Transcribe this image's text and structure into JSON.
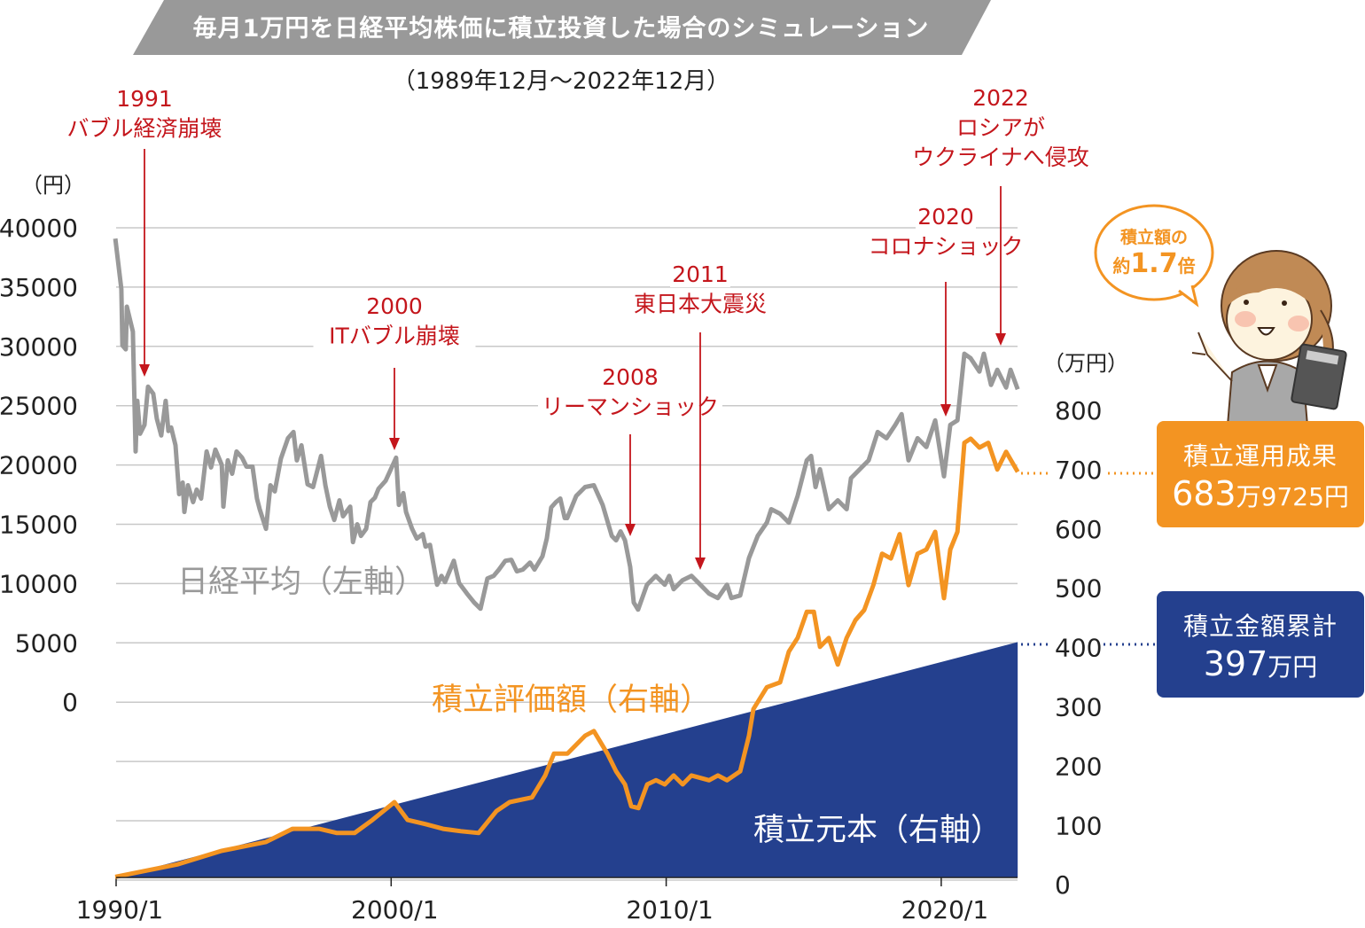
{
  "title": "毎月1万円を日経平均株価に積立投資した場合のシミュレーション",
  "subtitle": "（1989年12月〜2022年12月）",
  "colors": {
    "nikkei": "#999999",
    "valuation": "#f39422",
    "principal": "#24408e",
    "annotation": "#c4161c",
    "banner": "#999999"
  },
  "chart_data": {
    "type": "line",
    "left_axis": {
      "unit": "（円）",
      "range": [
        0,
        40000
      ],
      "ticks": [
        "40000",
        "35000",
        "30000",
        "25000",
        "20000",
        "15000",
        "10000",
        "5000",
        "0"
      ]
    },
    "right_axis": {
      "unit": "（万円）",
      "range": [
        0,
        800
      ],
      "ticks": [
        "800",
        "700",
        "600",
        "500",
        "400",
        "300",
        "200",
        "100",
        "0"
      ]
    },
    "x_axis": {
      "ticks": [
        "1990/1",
        "2000/1",
        "2010/1",
        "2020/1"
      ],
      "range": [
        "1989/12",
        "2022/12"
      ]
    },
    "grid": true,
    "series": [
      {
        "name": "日経平均（左軸）",
        "axis": "left",
        "type": "line",
        "x": [
          1989.97,
          1990.19,
          1990.23,
          1990.35,
          1990.39,
          1990.61,
          1990.71,
          1990.77,
          1990.87,
          1991.03,
          1991.16,
          1991.35,
          1991.48,
          1991.64,
          1991.8,
          1991.9,
          1992.0,
          1992.16,
          1992.29,
          1992.42,
          1992.48,
          1992.61,
          1992.8,
          1992.93,
          1993.09,
          1993.29,
          1993.45,
          1993.61,
          1993.84,
          1993.9,
          1994.06,
          1994.22,
          1994.38,
          1994.58,
          1994.74,
          1994.96,
          1995.12,
          1995.22,
          1995.45,
          1995.61,
          1995.77,
          1995.99,
          1996.25,
          1996.45,
          1996.57,
          1996.74,
          1996.96,
          1997.16,
          1997.45,
          1997.61,
          1997.77,
          1997.93,
          1998.12,
          1998.25,
          1998.51,
          1998.61,
          1998.77,
          1998.9,
          1999.09,
          1999.25,
          1999.41,
          1999.54,
          1999.8,
          2000.18,
          2000.28,
          2000.44,
          2000.54,
          2000.76,
          2000.93,
          2001.15,
          2001.25,
          2001.41,
          2001.67,
          2001.83,
          2001.96,
          2002.28,
          2002.47,
          2002.76,
          2003.02,
          2003.25,
          2003.5,
          2003.73,
          2003.92,
          2004.15,
          2004.37,
          2004.57,
          2004.79,
          2005.05,
          2005.21,
          2005.5,
          2005.66,
          2005.82,
          2005.99,
          2006.15,
          2006.31,
          2006.4,
          2006.73,
          2007.05,
          2007.37,
          2007.69,
          2008.02,
          2008.18,
          2008.34,
          2008.5,
          2008.69,
          2008.82,
          2008.98,
          2009.3,
          2009.62,
          2009.95,
          2010.11,
          2010.27,
          2010.59,
          2010.92,
          2011.24,
          2011.56,
          2011.88,
          2012.21,
          2012.37,
          2012.69,
          2013.01,
          2013.33,
          2013.66,
          2013.82,
          2014.14,
          2014.46,
          2014.78,
          2015.11,
          2015.27,
          2015.43,
          2015.59,
          2015.91,
          2016.24,
          2016.56,
          2016.72,
          2017.04,
          2017.36,
          2017.69,
          2018.01,
          2018.33,
          2018.56,
          2018.81,
          2019.14,
          2019.46,
          2019.78,
          2020.1,
          2020.33,
          2020.59,
          2020.84,
          2021.07,
          2021.39,
          2021.55,
          2021.81,
          2022.04,
          2022.36,
          2022.52,
          2022.78
        ],
        "values": [
          39000,
          34750,
          30000,
          29660,
          33260,
          31160,
          21050,
          25320,
          22540,
          23290,
          26510,
          25920,
          23820,
          22400,
          25320,
          22770,
          23070,
          21570,
          17450,
          18430,
          15950,
          18200,
          16780,
          17830,
          17080,
          21050,
          19700,
          21200,
          19920,
          16400,
          20300,
          19170,
          21050,
          20520,
          19770,
          19770,
          17080,
          16180,
          14530,
          18200,
          17680,
          20450,
          22170,
          22690,
          20300,
          21570,
          18280,
          18050,
          20670,
          18200,
          16400,
          15280,
          16930,
          15580,
          16400,
          13410,
          14910,
          13930,
          14530,
          16780,
          17150,
          17900,
          18580,
          20520,
          16550,
          17530,
          15950,
          14530,
          13710,
          14080,
          13030,
          13180,
          9810,
          10560,
          10040,
          11830,
          9960,
          9060,
          8310,
          7790,
          10340,
          10560,
          11090,
          11830,
          11910,
          10940,
          11090,
          11680,
          11090,
          12210,
          13710,
          16330,
          16780,
          17080,
          15430,
          15430,
          17300,
          18050,
          18200,
          16550,
          13930,
          13560,
          14310,
          13560,
          11310,
          8310,
          7710,
          9810,
          10560,
          9810,
          10560,
          9440,
          10190,
          10560,
          9810,
          9060,
          8690,
          9810,
          8690,
          8910,
          12060,
          13930,
          15050,
          16180,
          15800,
          15050,
          17300,
          20300,
          20670,
          18050,
          19550,
          16180,
          16930,
          16180,
          18800,
          19550,
          20300,
          22690,
          22170,
          23290,
          24190,
          20300,
          22170,
          21420,
          23670,
          18950,
          23290,
          23670,
          29290,
          28910,
          27790,
          29290,
          26660,
          27940,
          26440,
          27940,
          26290
        ]
      },
      {
        "name": "積立評価額（右軸）",
        "axis": "right",
        "type": "line",
        "x": [
          1989.97,
          1990.61,
          1992.22,
          1993.84,
          1995.45,
          1996.41,
          1997.38,
          1998.03,
          1998.67,
          1999.32,
          2000.12,
          2000.6,
          2001.25,
          2001.89,
          2002.54,
          2003.18,
          2003.83,
          2004.31,
          2005.12,
          2005.6,
          2005.92,
          2006.41,
          2007.05,
          2007.37,
          2007.86,
          2008.18,
          2008.5,
          2008.73,
          2008.99,
          2009.31,
          2009.63,
          2009.95,
          2010.27,
          2010.6,
          2010.92,
          2011.56,
          2011.88,
          2012.21,
          2012.69,
          2013.01,
          2013.17,
          2013.66,
          2014.14,
          2014.46,
          2014.78,
          2015.11,
          2015.37,
          2015.59,
          2015.91,
          2016.24,
          2016.56,
          2016.88,
          2017.2,
          2017.53,
          2017.85,
          2018.17,
          2018.49,
          2018.81,
          2019.14,
          2019.46,
          2019.78,
          2020.1,
          2020.33,
          2020.59,
          2020.84,
          2021.07,
          2021.39,
          2021.71,
          2022.04,
          2022.36,
          2022.78
        ],
        "values": [
          1,
          7,
          22,
          45,
          60,
          82,
          82,
          75,
          75,
          97,
          127,
          97,
          90,
          82,
          78,
          75,
          112,
          127,
          135,
          172,
          209,
          209,
          239,
          247,
          209,
          179,
          157,
          120,
          117,
          157,
          164,
          157,
          172,
          157,
          172,
          164,
          172,
          164,
          179,
          239,
          284,
          321,
          329,
          381,
          404,
          448,
          448,
          389,
          404,
          359,
          404,
          434,
          451,
          493,
          546,
          538,
          579,
          493,
          546,
          553,
          583,
          471,
          553,
          583,
          733,
          740,
          725,
          733,
          688,
          718,
          684
        ]
      },
      {
        "name": "積立元本（右軸）",
        "axis": "right",
        "type": "area",
        "x": [
          1989.97,
          2022.78
        ],
        "values": [
          1,
          397
        ]
      }
    ],
    "annotations": [
      {
        "year": "1991",
        "lines": [
          "バブル経済崩壊"
        ]
      },
      {
        "year": "2000",
        "lines": [
          "ITバブル崩壊"
        ]
      },
      {
        "year": "2008",
        "lines": [
          "リーマンショック"
        ]
      },
      {
        "year": "2011",
        "lines": [
          "東日本大震災"
        ]
      },
      {
        "year": "2020",
        "lines": [
          "コロナショック"
        ]
      },
      {
        "year": "2022",
        "lines": [
          "ロシアが",
          "ウクライナへ侵攻"
        ]
      }
    ]
  },
  "bubble": {
    "line1": "積立額の",
    "line2_prefix": "約",
    "line2_value": "1.7",
    "line2_suffix": "倍"
  },
  "result_box": {
    "label": "積立運用成果",
    "value_main": "683",
    "value_unit1": "万",
    "value_sub": "9725",
    "value_unit2": "円"
  },
  "principal_box": {
    "label": "積立金額累計",
    "value": "397",
    "unit": "万円"
  }
}
